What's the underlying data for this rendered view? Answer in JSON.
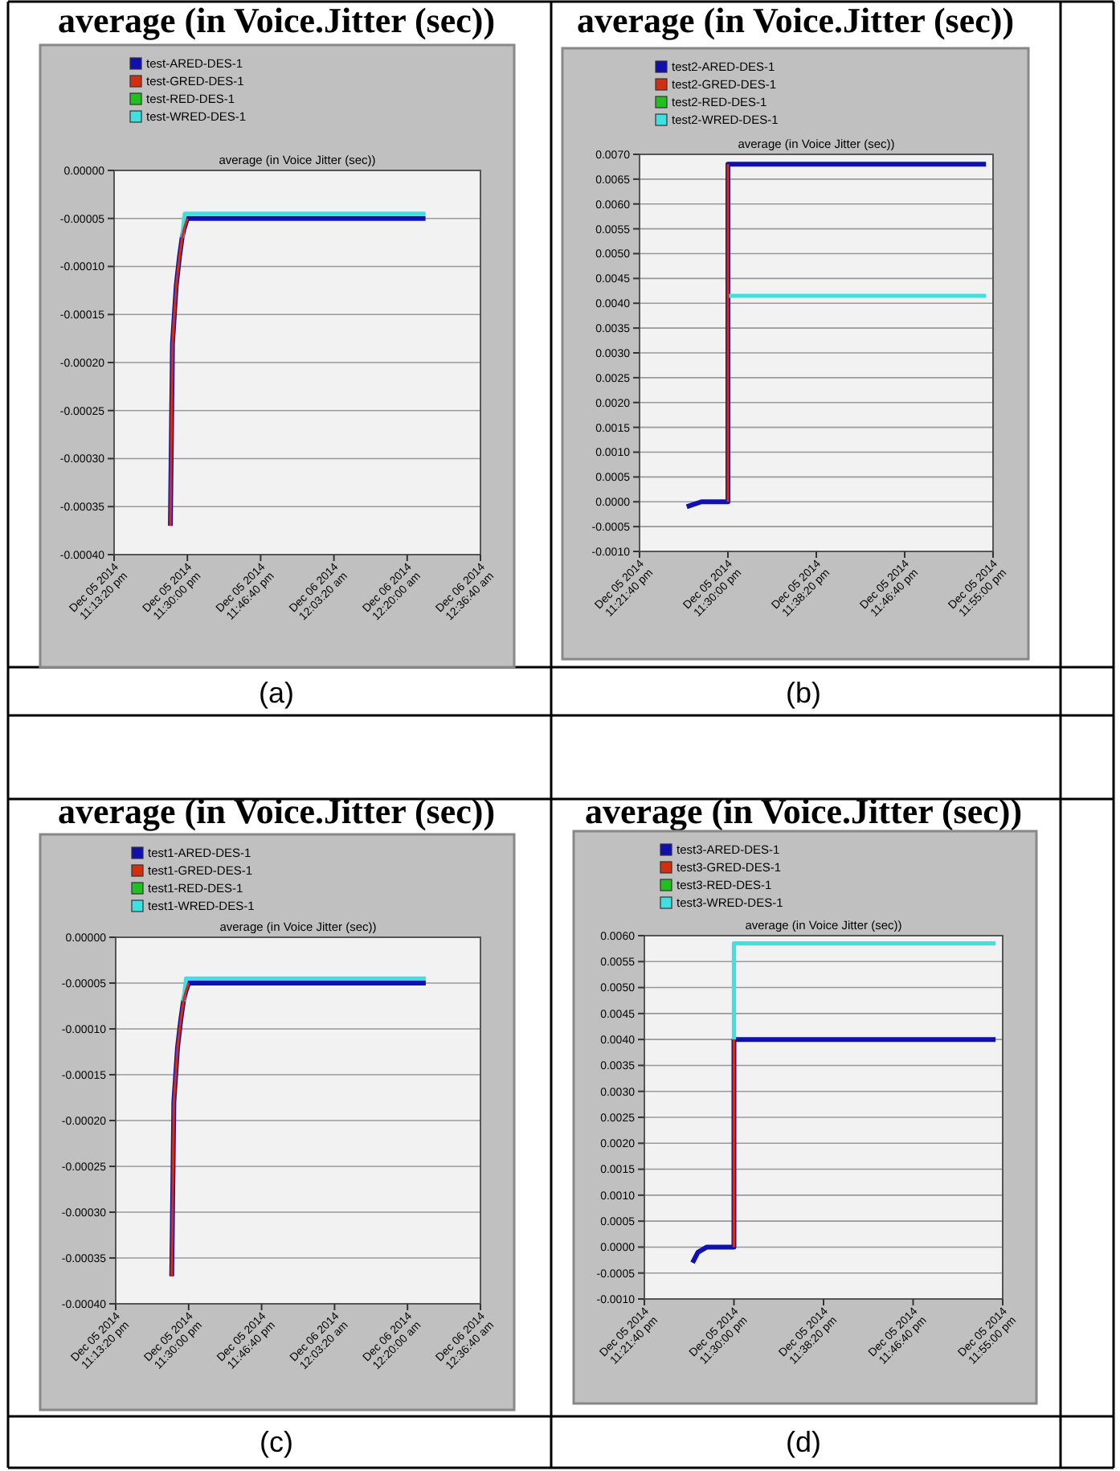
{
  "chart_data": [
    {
      "type": "line",
      "title": "average (in Voice.Jitter (sec))",
      "subtitle": "average (in Voice Jitter (sec))",
      "annotations": [
        "(a)"
      ],
      "xlim": [
        "2014-12-05T23:13:20",
        "2014-12-06T00:36:40"
      ],
      "xticks": [
        {
          "value": "2014-12-05T23:13:20",
          "label": "Dec 05 2014\n11:13:20 pm"
        },
        {
          "value": "2014-12-05T23:30:00",
          "label": "Dec 05 2014\n11:30:00 pm"
        },
        {
          "value": "2014-12-05T23:46:40",
          "label": "Dec 05 2014\n11:46:40 pm"
        },
        {
          "value": "2014-12-06T00:03:20",
          "label": "Dec 06 2014\n12:03:20 am"
        },
        {
          "value": "2014-12-06T00:20:00",
          "label": "Dec 06 2014\n12:20:00 am"
        },
        {
          "value": "2014-12-06T00:36:40",
          "label": "Dec 06 2014\n12:36:40 am"
        }
      ],
      "ylim": [
        -0.0004,
        0
      ],
      "yticks": [
        {
          "value": -0.0004,
          "label": "-0.00040"
        },
        {
          "value": -0.00035,
          "label": "-0.00035"
        },
        {
          "value": -0.0003,
          "label": "-0.00030"
        },
        {
          "value": -0.00025,
          "label": "-0.00025"
        },
        {
          "value": -0.0002,
          "label": "-0.00020"
        },
        {
          "value": -0.00015,
          "label": "-0.00015"
        },
        {
          "value": -0.0001,
          "label": "-0.00010"
        },
        {
          "value": -5e-05,
          "label": "-0.00005"
        },
        {
          "value": 0,
          "label": "0.00000"
        }
      ],
      "grid": "y",
      "legend": "top",
      "series": [
        {
          "name": "test-ARED-DES-1",
          "color": "#1010b0",
          "x": [
            "2014-12-05T23:26:08",
            "2014-12-05T23:26:37",
            "2014-12-05T23:27:28",
            "2014-12-05T23:28:12",
            "2014-12-05T23:28:48",
            "2014-12-05T23:29:18",
            "2014-12-05T23:30:00",
            "2014-12-06T00:24:10"
          ],
          "values": [
            -0.00037,
            -0.00018,
            -0.00012,
            -9e-05,
            -7e-05,
            -6e-05,
            -5e-05,
            -5e-05
          ]
        },
        {
          "name": "test-GRED-DES-1",
          "color": "#d03010",
          "x": [
            "2014-12-05T23:26:08",
            "2014-12-05T23:26:37",
            "2014-12-05T23:27:28",
            "2014-12-05T23:28:12",
            "2014-12-05T23:28:48",
            "2014-12-05T23:29:18",
            "2014-12-05T23:30:00"
          ],
          "values": [
            -0.00037,
            -0.00018,
            -0.00012,
            -9e-05,
            -7e-05,
            -6e-05,
            -5e-05
          ]
        },
        {
          "name": "test-RED-DES-1",
          "color": "#20c020"
        },
        {
          "name": "test-WRED-DES-1",
          "color": "#40e0e0",
          "x": [
            "2014-12-05T23:28:48",
            "2014-12-05T23:29:25",
            "2014-12-06T00:24:10"
          ],
          "values": [
            -7e-05,
            -4.5e-05,
            -4.5e-05
          ]
        }
      ]
    },
    {
      "type": "line",
      "title": "average (in Voice.Jitter (sec))",
      "subtitle": "average (in Voice Jitter (sec))",
      "annotations": [
        "(b)"
      ],
      "xlim": [
        "2014-12-05T23:21:40",
        "2014-12-05T23:55:00"
      ],
      "xticks": [
        {
          "value": "2014-12-05T23:21:40",
          "label": "Dec 05 2014\n11:21:40 pm"
        },
        {
          "value": "2014-12-05T23:30:00",
          "label": "Dec 05 2014\n11:30:00 pm"
        },
        {
          "value": "2014-12-05T23:38:20",
          "label": "Dec 05 2014\n11:38:20 pm"
        },
        {
          "value": "2014-12-05T23:46:40",
          "label": "Dec 05 2014\n11:46:40 pm"
        },
        {
          "value": "2014-12-05T23:55:00",
          "label": "Dec 05 2014\n11:55:00 pm"
        }
      ],
      "ylim": [
        -0.001,
        0.007
      ],
      "yticks": [
        {
          "value": -0.001,
          "label": "-0.0010"
        },
        {
          "value": -0.0005,
          "label": "-0.0005"
        },
        {
          "value": 0,
          "label": "0.0000"
        },
        {
          "value": 0.0005,
          "label": "0.0005"
        },
        {
          "value": 0.001,
          "label": "0.0010"
        },
        {
          "value": 0.0015,
          "label": "0.0015"
        },
        {
          "value": 0.002,
          "label": "0.0020"
        },
        {
          "value": 0.0025,
          "label": "0.0025"
        },
        {
          "value": 0.003,
          "label": "0.0030"
        },
        {
          "value": 0.0035,
          "label": "0.0035"
        },
        {
          "value": 0.004,
          "label": "0.0040"
        },
        {
          "value": 0.0045,
          "label": "0.0045"
        },
        {
          "value": 0.005,
          "label": "0.0050"
        },
        {
          "value": 0.0055,
          "label": "0.0055"
        },
        {
          "value": 0.006,
          "label": "0.0060"
        },
        {
          "value": 0.0065,
          "label": "0.0065"
        },
        {
          "value": 0.007,
          "label": "0.0070"
        }
      ],
      "grid": "y",
      "legend": "top",
      "series": [
        {
          "name": "test2-ARED-DES-1",
          "color": "#1010b0",
          "x": [
            "2014-12-05T23:26:07",
            "2014-12-05T23:27:30",
            "2014-12-05T23:30:00",
            "2014-12-05T23:30:00",
            "2014-12-05T23:54:20"
          ],
          "values": [
            -0.0001,
            0,
            0,
            0.0068,
            0.0068
          ]
        },
        {
          "name": "test2-GRED-DES-1",
          "color": "#d03010",
          "x": [
            "2014-12-05T23:30:00",
            "2014-12-05T23:30:00"
          ],
          "values": [
            0,
            0.0068
          ]
        },
        {
          "name": "test2-RED-DES-1",
          "color": "#20c020"
        },
        {
          "name": "test2-WRED-DES-1",
          "color": "#40e0e0",
          "x": [
            "2014-12-05T23:30:00",
            "2014-12-05T23:54:20"
          ],
          "values": [
            0.00415,
            0.00415
          ]
        }
      ]
    },
    {
      "type": "line",
      "title": "average (in Voice.Jitter (sec))",
      "subtitle": "average (in Voice Jitter (sec))",
      "annotations": [
        "(c)"
      ],
      "xlim": [
        "2014-12-05T23:13:20",
        "2014-12-06T00:36:40"
      ],
      "xticks": [
        {
          "value": "2014-12-05T23:13:20",
          "label": "Dec 05 2014\n11:13:20 pm"
        },
        {
          "value": "2014-12-05T23:30:00",
          "label": "Dec 05 2014\n11:30:00 pm"
        },
        {
          "value": "2014-12-05T23:46:40",
          "label": "Dec 05 2014\n11:46:40 pm"
        },
        {
          "value": "2014-12-06T00:03:20",
          "label": "Dec 06 2014\n12:03:20 am"
        },
        {
          "value": "2014-12-06T00:20:00",
          "label": "Dec 06 2014\n12:20:00 am"
        },
        {
          "value": "2014-12-06T00:36:40",
          "label": "Dec 06 2014\n12:36:40 am"
        }
      ],
      "ylim": [
        -0.0004,
        0
      ],
      "yticks": [
        {
          "value": -0.0004,
          "label": "-0.00040"
        },
        {
          "value": -0.00035,
          "label": "-0.00035"
        },
        {
          "value": -0.0003,
          "label": "-0.00030"
        },
        {
          "value": -0.00025,
          "label": "-0.00025"
        },
        {
          "value": -0.0002,
          "label": "-0.00020"
        },
        {
          "value": -0.00015,
          "label": "-0.00015"
        },
        {
          "value": -0.0001,
          "label": "-0.00010"
        },
        {
          "value": -5e-05,
          "label": "-0.00005"
        },
        {
          "value": 0,
          "label": "0.00000"
        }
      ],
      "grid": "y",
      "legend": "top",
      "series": [
        {
          "name": "test1-ARED-DES-1",
          "color": "#1010b0",
          "x": [
            "2014-12-05T23:26:08",
            "2014-12-05T23:26:37",
            "2014-12-05T23:27:28",
            "2014-12-05T23:28:12",
            "2014-12-05T23:28:48",
            "2014-12-05T23:29:18",
            "2014-12-05T23:30:00",
            "2014-12-06T00:24:10"
          ],
          "values": [
            -0.00037,
            -0.00018,
            -0.00012,
            -9e-05,
            -7e-05,
            -6e-05,
            -5e-05,
            -5e-05
          ]
        },
        {
          "name": "test1-GRED-DES-1",
          "color": "#d03010",
          "x": [
            "2014-12-05T23:26:08",
            "2014-12-05T23:26:37",
            "2014-12-05T23:27:28",
            "2014-12-05T23:28:12",
            "2014-12-05T23:28:48",
            "2014-12-05T23:29:18",
            "2014-12-05T23:30:00"
          ],
          "values": [
            -0.00037,
            -0.00018,
            -0.00012,
            -9e-05,
            -7e-05,
            -6e-05,
            -5e-05
          ]
        },
        {
          "name": "test1-RED-DES-1",
          "color": "#20c020"
        },
        {
          "name": "test1-WRED-DES-1",
          "color": "#40e0e0",
          "x": [
            "2014-12-05T23:28:48",
            "2014-12-05T23:29:25",
            "2014-12-06T00:24:10"
          ],
          "values": [
            -7e-05,
            -4.5e-05,
            -4.5e-05
          ]
        }
      ]
    },
    {
      "type": "line",
      "title": "average (in Voice.Jitter (sec))",
      "subtitle": "average (in Voice Jitter (sec))",
      "annotations": [
        "(d)"
      ],
      "xlim": [
        "2014-12-05T23:21:40",
        "2014-12-05T23:55:00"
      ],
      "xticks": [
        {
          "value": "2014-12-05T23:21:40",
          "label": "Dec 05 2014\n11:21:40 pm"
        },
        {
          "value": "2014-12-05T23:30:00",
          "label": "Dec 05 2014\n11:30:00 pm"
        },
        {
          "value": "2014-12-05T23:38:20",
          "label": "Dec 05 2014\n11:38:20 pm"
        },
        {
          "value": "2014-12-05T23:46:40",
          "label": "Dec 05 2014\n11:46:40 pm"
        },
        {
          "value": "2014-12-05T23:55:00",
          "label": "Dec 05 2014\n11:55:00 pm"
        }
      ],
      "ylim": [
        -0.001,
        0.006
      ],
      "yticks": [
        {
          "value": -0.001,
          "label": "-0.0010"
        },
        {
          "value": -0.0005,
          "label": "-0.0005"
        },
        {
          "value": 0,
          "label": "0.0000"
        },
        {
          "value": 0.0005,
          "label": "0.0005"
        },
        {
          "value": 0.001,
          "label": "0.0010"
        },
        {
          "value": 0.0015,
          "label": "0.0015"
        },
        {
          "value": 0.002,
          "label": "0.0020"
        },
        {
          "value": 0.0025,
          "label": "0.0025"
        },
        {
          "value": 0.003,
          "label": "0.0030"
        },
        {
          "value": 0.0035,
          "label": "0.0035"
        },
        {
          "value": 0.004,
          "label": "0.0040"
        },
        {
          "value": 0.0045,
          "label": "0.0045"
        },
        {
          "value": 0.005,
          "label": "0.0050"
        },
        {
          "value": 0.0055,
          "label": "0.0055"
        },
        {
          "value": 0.006,
          "label": "0.0060"
        }
      ],
      "grid": "y",
      "legend": "top",
      "series": [
        {
          "name": "test3-ARED-DES-1",
          "color": "#1010b0",
          "x": [
            "2014-12-05T23:26:09",
            "2014-12-05T23:26:39",
            "2014-12-05T23:27:29",
            "2014-12-05T23:30:00",
            "2014-12-05T23:30:00",
            "2014-12-05T23:54:20"
          ],
          "values": [
            -0.0003,
            -0.0001,
            0,
            0,
            0.004,
            0.004
          ]
        },
        {
          "name": "test3-GRED-DES-1",
          "color": "#d03010",
          "x": [
            "2014-12-05T23:30:00",
            "2014-12-05T23:30:00"
          ],
          "values": [
            0,
            0.004
          ]
        },
        {
          "name": "test3-RED-DES-1",
          "color": "#20c020"
        },
        {
          "name": "test3-WRED-DES-1",
          "color": "#40e0e0",
          "x": [
            "2014-12-05T23:30:00",
            "2014-12-05T23:30:00",
            "2014-12-05T23:54:20"
          ],
          "values": [
            0.004,
            0.00585,
            0.00585
          ]
        }
      ]
    }
  ]
}
